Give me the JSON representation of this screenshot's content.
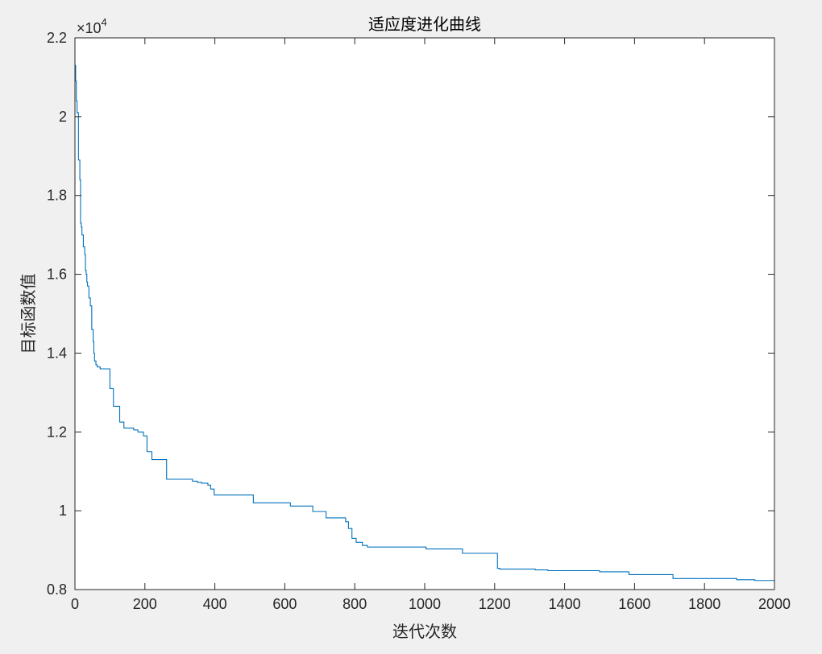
{
  "chart_data": {
    "type": "line",
    "title": "适应度进化曲线",
    "xlabel": "迭代次数",
    "ylabel": "目标函数值",
    "xlim": [
      0,
      2000
    ],
    "ylim": [
      8000,
      22000
    ],
    "x_ticks": [
      0,
      200,
      400,
      600,
      800,
      1000,
      1200,
      1400,
      1600,
      1800,
      2000
    ],
    "x_tick_labels": [
      "0",
      "200",
      "400",
      "600",
      "800",
      "1000",
      "1200",
      "1400",
      "1600",
      "1800",
      "2000"
    ],
    "y_ticks": [
      8000,
      10000,
      12000,
      14000,
      16000,
      18000,
      20000,
      22000
    ],
    "y_tick_labels": [
      "0.8",
      "1",
      "1.2",
      "1.4",
      "1.6",
      "1.8",
      "2",
      "2.2"
    ],
    "y_exponent_label": "×10",
    "y_exponent_power": "4",
    "grid": false,
    "line_color": "#0072BD",
    "series": [
      {
        "step": true,
        "x": [
          0,
          2,
          4,
          6,
          10,
          14,
          16,
          18,
          20,
          24,
          28,
          30,
          32,
          34,
          36,
          40,
          44,
          48,
          52,
          54,
          56,
          60,
          64,
          68,
          70,
          72,
          76,
          82,
          88,
          94,
          100,
          110,
          114,
          118,
          128,
          135,
          140,
          150,
          160,
          168,
          180,
          196,
          206,
          220,
          226,
          232,
          238,
          242,
          248,
          254,
          262,
          268,
          300,
          336,
          350,
          362,
          380,
          388,
          398,
          410,
          440,
          474,
          510,
          560,
          616,
          680,
          718,
          736,
          748,
          774,
          782,
          792,
          804,
          822,
          836,
          850,
          1004,
          1108,
          1208,
          1214,
          1316,
          1326,
          1352,
          1500,
          1584,
          1710,
          1892,
          1944,
          2000
        ],
        "y": [
          21300,
          20900,
          20400,
          20100,
          18900,
          18400,
          17300,
          17200,
          17000,
          16700,
          16500,
          16100,
          16000,
          15800,
          15700,
          15400,
          15200,
          14600,
          14300,
          14000,
          13800,
          13700,
          13650,
          13650,
          13650,
          13600,
          13600,
          13600,
          13600,
          13600,
          13100,
          12650,
          12650,
          12650,
          12250,
          12250,
          12100,
          12100,
          12100,
          12050,
          12000,
          11900,
          11500,
          11300,
          11300,
          11300,
          11300,
          11300,
          11300,
          11300,
          10800,
          10800,
          10800,
          10750,
          10720,
          10700,
          10650,
          10550,
          10400,
          10400,
          10400,
          10400,
          10200,
          10200,
          10120,
          9980,
          9820,
          9820,
          9820,
          9720,
          9550,
          9300,
          9200,
          9120,
          9080,
          9080,
          9030,
          8920,
          8540,
          8520,
          8500,
          8500,
          8480,
          8450,
          8380,
          8280,
          8250,
          8230,
          8200
        ]
      }
    ]
  }
}
